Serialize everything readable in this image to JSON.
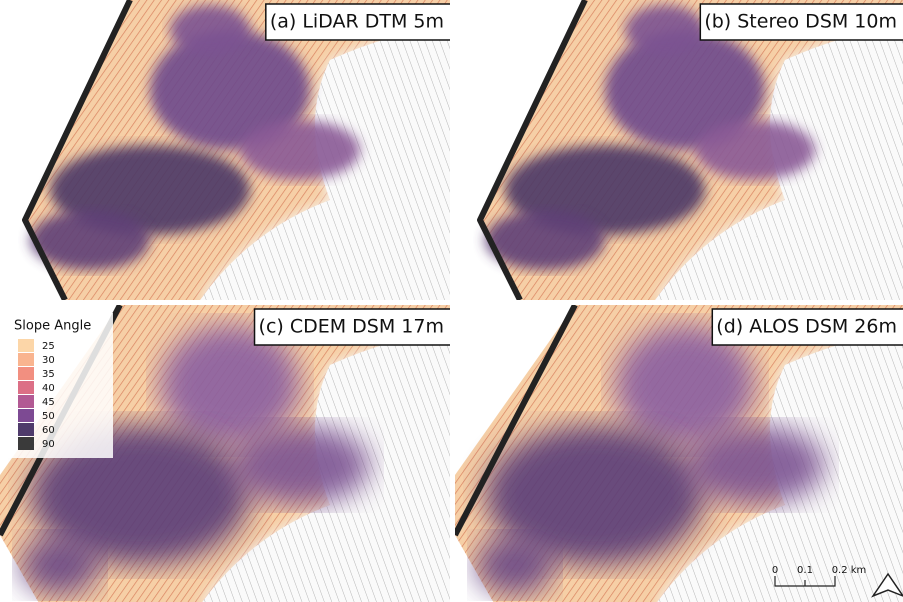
{
  "panels": [
    {
      "title": "(a) LiDAR DTM 5m"
    },
    {
      "title": "(b) Stereo DSM 10m"
    },
    {
      "title": "(c) CDEM DSM 17m"
    },
    {
      "title": "(d) ALOS DSM 26m"
    }
  ],
  "legend": {
    "title": "Slope Angle",
    "items": [
      {
        "label": "25",
        "color": "#fcd6a8"
      },
      {
        "label": "30",
        "color": "#f9b48f"
      },
      {
        "label": "35",
        "color": "#f28f80"
      },
      {
        "label": "40",
        "color": "#dc6f86"
      },
      {
        "label": "45",
        "color": "#b25a94"
      },
      {
        "label": "50",
        "color": "#7d4a93"
      },
      {
        "label": "60",
        "color": "#4f3b6b"
      },
      {
        "label": "90",
        "color": "#3a3a3a"
      }
    ]
  },
  "scale_bar": {
    "labels": [
      "0",
      "0.1",
      "0.2 km"
    ]
  }
}
